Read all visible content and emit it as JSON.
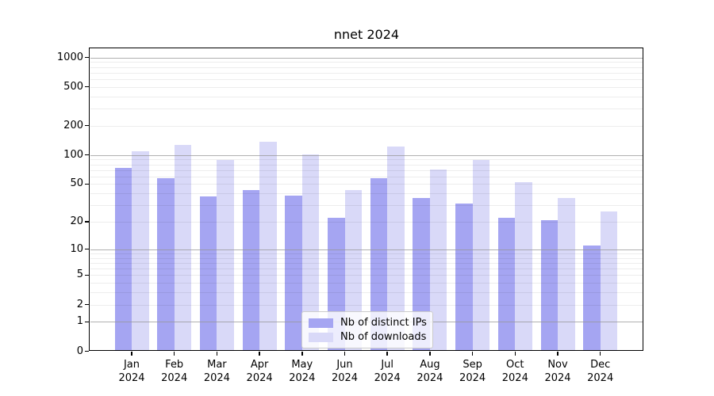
{
  "chart_data": {
    "type": "bar",
    "title": "nnet 2024",
    "scale": "log10(1+v)",
    "categories": [
      "Jan",
      "Feb",
      "Mar",
      "Apr",
      "May",
      "Jun",
      "Jul",
      "Aug",
      "Sep",
      "Oct",
      "Nov",
      "Dec"
    ],
    "category_year": "2024",
    "series": [
      {
        "name": "Nb of distinct IPs",
        "color": "#a5a5f2",
        "values": [
          74,
          57,
          37,
          43,
          38,
          22,
          57,
          36,
          31,
          22,
          21,
          11
        ]
      },
      {
        "name": "Nb of downloads",
        "color": "#d9d9f8",
        "values": [
          110,
          128,
          89,
          137,
          102,
          43,
          123,
          71,
          88,
          52,
          36,
          26
        ]
      }
    ],
    "y_ticks": [
      0,
      1,
      2,
      5,
      10,
      20,
      50,
      100,
      200,
      500,
      1000
    ],
    "ylim": [
      0,
      1270
    ],
    "xlabel": "",
    "ylabel": "",
    "grid": "major gray lines at 1,10,100,1000 over bars; faint minor log lines",
    "legend_position": "bottom-center-inside"
  }
}
